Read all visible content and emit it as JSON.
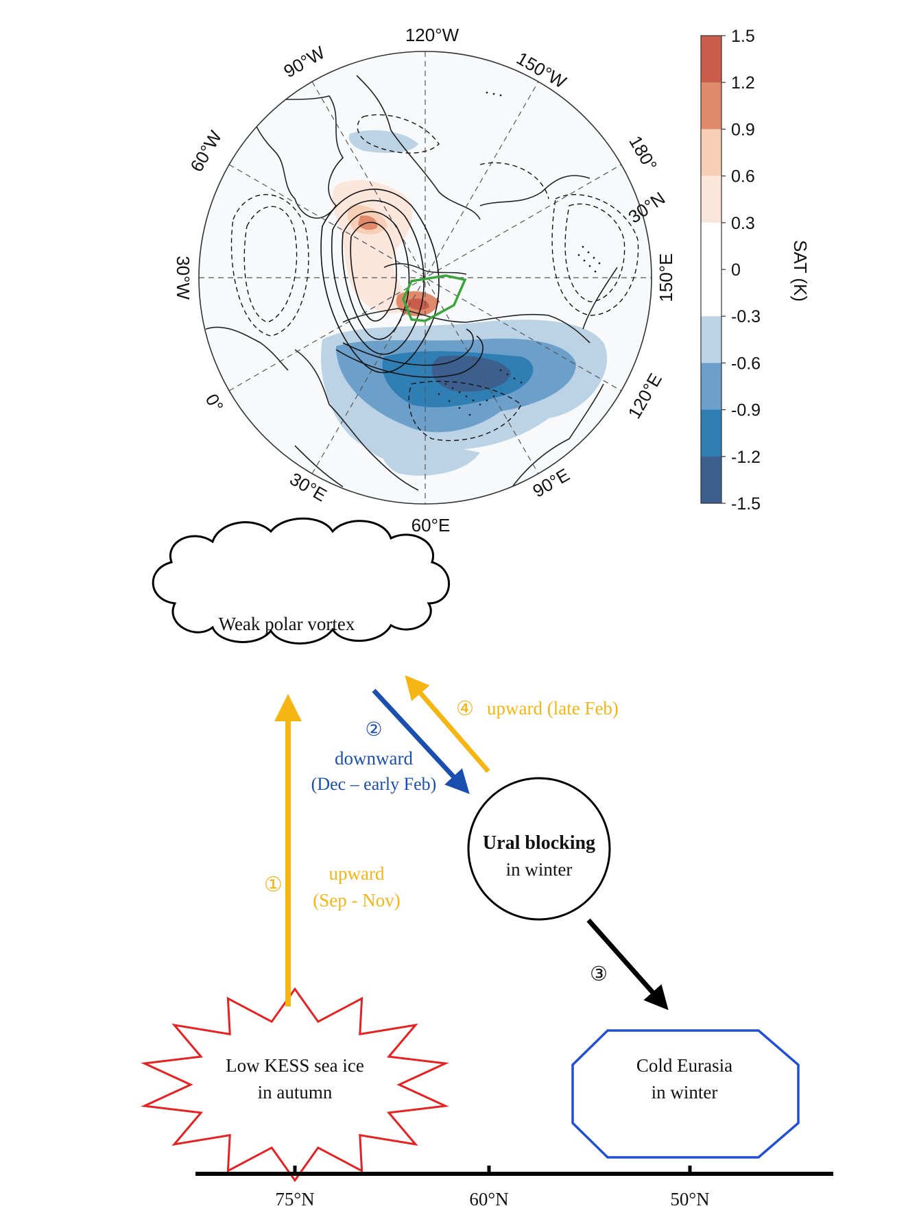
{
  "map": {
    "lon_labels": [
      "120°W",
      "150°W",
      "180°",
      "150°E",
      "120°E",
      "90°E",
      "60°E",
      "30°E",
      "0°",
      "30°W",
      "60°W",
      "90°W"
    ],
    "lat_label": "30°N"
  },
  "colorbar": {
    "title": "SAT (K)",
    "ticks": [
      "1.5",
      "1.2",
      "0.9",
      "0.6",
      "0.3",
      "0",
      "-0.3",
      "-0.6",
      "-0.9",
      "-1.2",
      "-1.5"
    ],
    "colors": [
      "#c95c4b",
      "#e08a6c",
      "#f7cfb6",
      "#fbe6dc",
      "#ffffff",
      "#ffffff",
      "#bcd3e6",
      "#6d9fcb",
      "#2f7fb5",
      "#3c5f8d"
    ]
  },
  "diagram": {
    "nodes": {
      "vortex": "Weak polar vortex",
      "blocking_bold": "Ural blocking",
      "blocking_rest": "in winter",
      "seaice_line1": "Low KESS  sea ice",
      "seaice_line2": "in autumn",
      "eurasia_line1": "Cold Eurasia",
      "eurasia_line2": "in winter"
    },
    "arrows": {
      "a1_num": "①",
      "a1_line1": "upward",
      "a1_line2": "(Sep - Nov)",
      "a2_num": "②",
      "a2_line1": "downward",
      "a2_line2": "(Dec – early Feb)",
      "a3_num": "③",
      "a4_num": "④",
      "a4_text": "upward (late Feb)"
    },
    "axis_ticks": [
      "75°N",
      "60°N",
      "50°N"
    ],
    "colors": {
      "yellow": "#f5b512",
      "blue": "#1a4fb0",
      "red": "#e82020",
      "outline_blue": "#1f4fd6"
    }
  }
}
